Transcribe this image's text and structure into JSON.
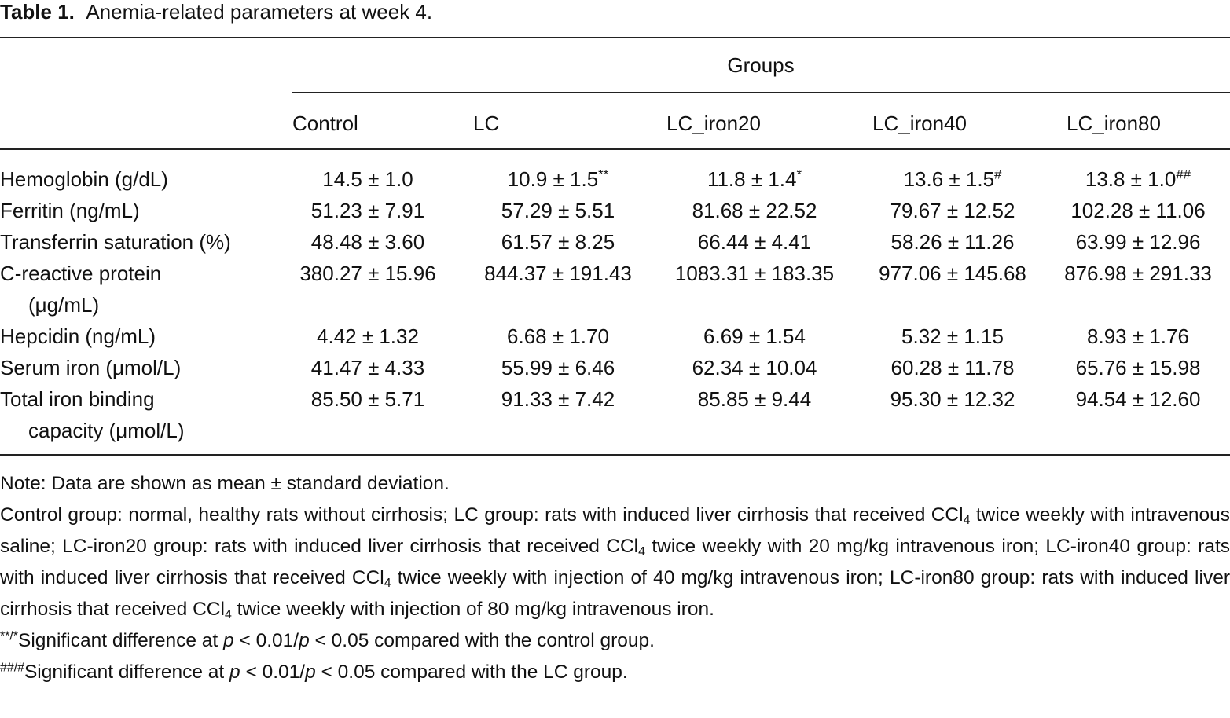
{
  "title": {
    "label": "Table 1.",
    "text": "Anemia-related parameters at week 4."
  },
  "table": {
    "group_header": "Groups",
    "columns": [
      "Control",
      "LC",
      "LC_iron20",
      "LC_iron40",
      "LC_iron80"
    ],
    "rows": [
      {
        "label": [
          "Hemoglobin (g/dL)"
        ],
        "cells": [
          {
            "text": "14.5 ± 1.0"
          },
          {
            "text": "10.9 ± 1.5",
            "mark": "**"
          },
          {
            "text": "11.8 ± 1.4",
            "mark": "*"
          },
          {
            "text": "13.6 ± 1.5",
            "mark": "#"
          },
          {
            "text": "13.8 ± 1.0",
            "mark": "##"
          }
        ]
      },
      {
        "label": [
          "Ferritin (ng/mL)"
        ],
        "cells": [
          {
            "text": "51.23 ± 7.91"
          },
          {
            "text": "57.29 ± 5.51"
          },
          {
            "text": "81.68 ± 22.52"
          },
          {
            "text": "79.67 ± 12.52"
          },
          {
            "text": "102.28 ± 11.06"
          }
        ]
      },
      {
        "label": [
          "Transferrin saturation (%)"
        ],
        "cells": [
          {
            "text": "48.48 ± 3.60"
          },
          {
            "text": "61.57 ± 8.25"
          },
          {
            "text": "66.44 ± 4.41"
          },
          {
            "text": "58.26 ± 11.26"
          },
          {
            "text": "63.99 ± 12.96"
          }
        ]
      },
      {
        "label": [
          "C-reactive protein",
          "(μg/mL)"
        ],
        "cells": [
          {
            "text": "380.27 ± 15.96"
          },
          {
            "text": "844.37 ± 191.43"
          },
          {
            "text": "1083.31 ± 183.35"
          },
          {
            "text": "977.06 ± 145.68"
          },
          {
            "text": "876.98 ± 291.33"
          }
        ]
      },
      {
        "label": [
          "Hepcidin (ng/mL)"
        ],
        "cells": [
          {
            "text": "4.42 ± 1.32"
          },
          {
            "text": "6.68 ± 1.70"
          },
          {
            "text": "6.69 ± 1.54"
          },
          {
            "text": "5.32 ± 1.15"
          },
          {
            "text": "8.93 ± 1.76"
          }
        ]
      },
      {
        "label": [
          "Serum iron (μmol/L)"
        ],
        "cells": [
          {
            "text": "41.47 ± 4.33"
          },
          {
            "text": "55.99 ± 6.46"
          },
          {
            "text": "62.34 ± 10.04"
          },
          {
            "text": "60.28 ± 11.78"
          },
          {
            "text": "65.76 ± 15.98"
          }
        ]
      },
      {
        "label": [
          "Total iron binding",
          "capacity (μmol/L)"
        ],
        "cells": [
          {
            "text": "85.50 ± 5.71"
          },
          {
            "text": "91.33 ± 7.42"
          },
          {
            "text": "85.85 ± 9.44"
          },
          {
            "text": "95.30 ± 12.32"
          },
          {
            "text": "94.54 ± 12.60"
          }
        ]
      }
    ]
  },
  "notes": [
    [
      {
        "text": "Note: Data are shown as mean ± standard deviation."
      }
    ],
    [
      {
        "text": "Control group: normal, healthy rats without cirrhosis; LC group: rats with induced liver cirrhosis that received CCl"
      },
      {
        "text": "4",
        "style": "sub"
      },
      {
        "text": " twice weekly with intravenous saline; LC-iron20 group: rats with induced liver cirrhosis that received CCl"
      },
      {
        "text": "4",
        "style": "sub"
      },
      {
        "text": " twice weekly with 20 mg/kg intravenous iron; LC-iron40 group: rats with induced liver cirrhosis that received CCl"
      },
      {
        "text": "4",
        "style": "sub"
      },
      {
        "text": " twice weekly with injection of 40 mg/kg intravenous iron; LC-iron80 group: rats with induced liver cirrhosis that received CCl"
      },
      {
        "text": "4",
        "style": "sub"
      },
      {
        "text": " twice weekly with injection of 80 mg/kg intravenous iron."
      }
    ],
    [
      {
        "text": "**/*",
        "style": "sup"
      },
      {
        "text": "Significant difference at "
      },
      {
        "text": "p",
        "style": "italic"
      },
      {
        "text": " < 0.01/"
      },
      {
        "text": "p",
        "style": "italic"
      },
      {
        "text": " < 0.05 compared with the control group."
      }
    ],
    [
      {
        "text": "##/#",
        "style": "sup"
      },
      {
        "text": "Significant difference at "
      },
      {
        "text": "p",
        "style": "italic"
      },
      {
        "text": " < 0.01/"
      },
      {
        "text": "p",
        "style": "italic"
      },
      {
        "text": " < 0.05 compared with the LC group."
      }
    ]
  ]
}
